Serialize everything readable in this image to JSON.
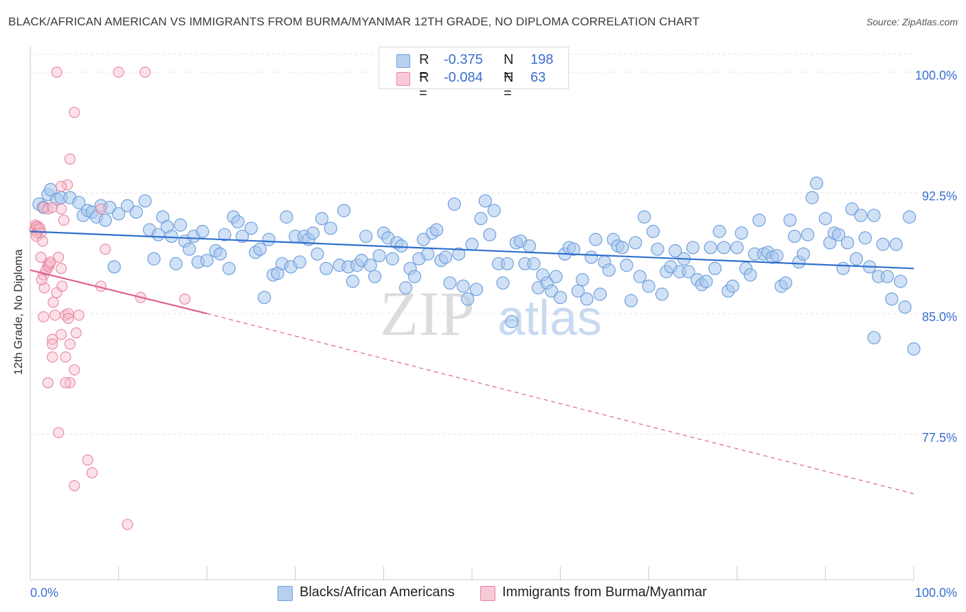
{
  "title": "BLACK/AFRICAN AMERICAN VS IMMIGRANTS FROM BURMA/MYANMAR 12TH GRADE, NO DIPLOMA CORRELATION CHART",
  "source": "Source: ZipAtlas.com",
  "watermark": {
    "zip": "ZIP",
    "atlas": "atlas"
  },
  "legend": {
    "rows": [
      {
        "r_label": "R =",
        "r_value": "-0.375",
        "n_label": "N =",
        "n_value": "198"
      },
      {
        "r_label": "R =",
        "r_value": "-0.084",
        "n_label": "N =",
        "n_value": "63"
      }
    ]
  },
  "bottom_legend": [
    "Blacks/African Americans",
    "Immigrants from Burma/Myanmar"
  ],
  "colors": {
    "blue_fill": "#a9c8ee",
    "blue_stroke": "#6f9fdc",
    "blue_line": "#2e6fcc",
    "pink_fill": "#f6bccd",
    "pink_stroke": "#e9839f",
    "pink_line": "#e0608a",
    "grid": "#e4e4e4",
    "axis_text": "#3b6fd1"
  },
  "chart_data": {
    "type": "scatter",
    "title": "BLACK/AFRICAN AMERICAN VS IMMIGRANTS FROM BURMA/MYANMAR 12TH GRADE, NO DIPLOMA CORRELATION CHART",
    "xlabel": "",
    "ylabel": "12th Grade, No Diploma",
    "xlim": [
      0,
      100
    ],
    "ylim": [
      68.5,
      101.5
    ],
    "x_tick_labels": [
      "0.0%",
      "100.0%"
    ],
    "y_ticks": [
      77.5,
      85.0,
      92.5,
      100.0
    ],
    "y_tick_labels": [
      "77.5%",
      "85.0%",
      "92.5%",
      "100.0%"
    ],
    "grid": true,
    "series": [
      {
        "name": "Blacks/African Americans",
        "trend": {
          "x": [
            0,
            100
          ],
          "y": [
            90.1,
            87.8
          ]
        },
        "points": [
          [
            1.0,
            91.8
          ],
          [
            1.5,
            91.6
          ],
          [
            2.0,
            92.4
          ],
          [
            2.3,
            92.7
          ],
          [
            3.0,
            92.1
          ],
          [
            3.5,
            92.2
          ],
          [
            4.5,
            92.2
          ],
          [
            5.5,
            91.9
          ],
          [
            6.0,
            91.1
          ],
          [
            6.5,
            91.4
          ],
          [
            7.0,
            91.3
          ],
          [
            8.0,
            91.7
          ],
          [
            7.5,
            91.0
          ],
          [
            8.5,
            90.8
          ],
          [
            9.0,
            91.6
          ],
          [
            10.0,
            91.2
          ],
          [
            11.0,
            91.7
          ],
          [
            12.0,
            91.3
          ],
          [
            13.0,
            92.0
          ],
          [
            9.5,
            87.9
          ],
          [
            13.5,
            90.2
          ],
          [
            14.5,
            89.9
          ],
          [
            14.0,
            88.4
          ],
          [
            15.0,
            91.0
          ],
          [
            15.5,
            90.4
          ],
          [
            16.0,
            89.8
          ],
          [
            16.5,
            88.1
          ],
          [
            17.0,
            90.5
          ],
          [
            17.5,
            89.5
          ],
          [
            18.0,
            89.0
          ],
          [
            18.5,
            89.8
          ],
          [
            19.0,
            88.2
          ],
          [
            19.5,
            90.1
          ],
          [
            20.0,
            88.3
          ],
          [
            21.0,
            88.9
          ],
          [
            21.5,
            88.7
          ],
          [
            22.0,
            89.9
          ],
          [
            22.5,
            87.8
          ],
          [
            23.0,
            91.0
          ],
          [
            23.5,
            90.7
          ],
          [
            24.0,
            89.8
          ],
          [
            25.0,
            90.3
          ],
          [
            25.5,
            88.8
          ],
          [
            26.0,
            89.0
          ],
          [
            26.5,
            86.0
          ],
          [
            27.0,
            89.6
          ],
          [
            27.5,
            87.4
          ],
          [
            28.0,
            87.5
          ],
          [
            28.5,
            88.1
          ],
          [
            29.0,
            91.0
          ],
          [
            29.5,
            87.9
          ],
          [
            30.0,
            89.8
          ],
          [
            30.5,
            88.2
          ],
          [
            31.0,
            89.8
          ],
          [
            31.5,
            89.6
          ],
          [
            32.0,
            90.0
          ],
          [
            32.5,
            88.7
          ],
          [
            33.0,
            90.9
          ],
          [
            33.5,
            87.8
          ],
          [
            34.0,
            90.3
          ],
          [
            35.0,
            88.0
          ],
          [
            35.5,
            91.4
          ],
          [
            36.0,
            87.9
          ],
          [
            36.5,
            87.0
          ],
          [
            37.0,
            88.0
          ],
          [
            37.5,
            88.3
          ],
          [
            38.0,
            89.8
          ],
          [
            38.5,
            88.0
          ],
          [
            39.0,
            87.3
          ],
          [
            39.5,
            88.6
          ],
          [
            40.0,
            90.0
          ],
          [
            40.5,
            89.7
          ],
          [
            41.0,
            88.4
          ],
          [
            41.5,
            89.4
          ],
          [
            42.0,
            89.2
          ],
          [
            42.5,
            86.6
          ],
          [
            43.0,
            87.8
          ],
          [
            43.5,
            87.3
          ],
          [
            44.0,
            88.4
          ],
          [
            44.5,
            89.6
          ],
          [
            45.0,
            88.7
          ],
          [
            45.5,
            90.0
          ],
          [
            46.0,
            90.2
          ],
          [
            46.5,
            88.3
          ],
          [
            47.0,
            88.5
          ],
          [
            47.5,
            86.9
          ],
          [
            48.0,
            91.8
          ],
          [
            48.5,
            88.7
          ],
          [
            49.0,
            86.7
          ],
          [
            49.5,
            85.9
          ],
          [
            50.0,
            89.3
          ],
          [
            50.5,
            86.5
          ],
          [
            51.0,
            90.9
          ],
          [
            51.5,
            92.0
          ],
          [
            52.0,
            89.9
          ],
          [
            52.5,
            91.4
          ],
          [
            53.0,
            88.1
          ],
          [
            53.5,
            86.9
          ],
          [
            54.0,
            88.1
          ],
          [
            54.5,
            84.5
          ],
          [
            55.0,
            89.4
          ],
          [
            55.5,
            89.5
          ],
          [
            56.0,
            88.1
          ],
          [
            56.5,
            89.2
          ],
          [
            57.0,
            88.1
          ],
          [
            57.5,
            86.6
          ],
          [
            58.0,
            87.4
          ],
          [
            58.5,
            86.9
          ],
          [
            59.0,
            86.4
          ],
          [
            59.5,
            87.3
          ],
          [
            60.0,
            86.0
          ],
          [
            60.5,
            88.7
          ],
          [
            61.0,
            89.1
          ],
          [
            61.5,
            89.0
          ],
          [
            62.0,
            86.4
          ],
          [
            62.5,
            87.1
          ],
          [
            63.0,
            85.9
          ],
          [
            63.5,
            88.5
          ],
          [
            64.0,
            89.6
          ],
          [
            64.5,
            86.2
          ],
          [
            65.0,
            88.2
          ],
          [
            65.5,
            87.7
          ],
          [
            66.0,
            89.6
          ],
          [
            66.5,
            89.2
          ],
          [
            67.0,
            89.1
          ],
          [
            67.5,
            88.0
          ],
          [
            68.0,
            85.8
          ],
          [
            68.5,
            89.4
          ],
          [
            69.0,
            87.3
          ],
          [
            69.5,
            91.0
          ],
          [
            70.0,
            86.7
          ],
          [
            70.5,
            90.1
          ],
          [
            71.0,
            89.0
          ],
          [
            71.5,
            86.2
          ],
          [
            72.0,
            87.6
          ],
          [
            72.5,
            87.9
          ],
          [
            73.0,
            88.9
          ],
          [
            73.5,
            87.6
          ],
          [
            74.0,
            88.4
          ],
          [
            74.5,
            87.6
          ],
          [
            75.0,
            89.1
          ],
          [
            75.5,
            87.1
          ],
          [
            76.0,
            86.8
          ],
          [
            76.5,
            87.0
          ],
          [
            77.0,
            89.1
          ],
          [
            77.5,
            87.8
          ],
          [
            78.0,
            90.1
          ],
          [
            78.5,
            89.1
          ],
          [
            79.0,
            86.4
          ],
          [
            79.5,
            86.7
          ],
          [
            80.0,
            89.1
          ],
          [
            80.5,
            90.0
          ],
          [
            81.0,
            87.8
          ],
          [
            81.5,
            87.4
          ],
          [
            82.0,
            88.7
          ],
          [
            82.5,
            90.8
          ],
          [
            83.0,
            88.7
          ],
          [
            83.5,
            88.8
          ],
          [
            84.0,
            88.5
          ],
          [
            84.5,
            88.6
          ],
          [
            85.0,
            86.7
          ],
          [
            85.5,
            86.9
          ],
          [
            86.0,
            90.8
          ],
          [
            86.5,
            89.8
          ],
          [
            87.0,
            88.2
          ],
          [
            87.5,
            88.7
          ],
          [
            88.0,
            89.9
          ],
          [
            88.5,
            92.2
          ],
          [
            89.0,
            93.1
          ],
          [
            90.0,
            90.9
          ],
          [
            90.5,
            89.4
          ],
          [
            91.0,
            90.0
          ],
          [
            91.5,
            89.9
          ],
          [
            92.0,
            87.8
          ],
          [
            92.5,
            89.4
          ],
          [
            93.0,
            91.5
          ],
          [
            93.5,
            88.4
          ],
          [
            94.0,
            91.1
          ],
          [
            94.5,
            89.7
          ],
          [
            95.0,
            87.9
          ],
          [
            95.5,
            91.1
          ],
          [
            96.0,
            87.3
          ],
          [
            96.5,
            89.3
          ],
          [
            97.0,
            87.3
          ],
          [
            97.5,
            85.9
          ],
          [
            98.0,
            89.3
          ],
          [
            98.5,
            87.0
          ],
          [
            99.0,
            85.4
          ],
          [
            99.5,
            91.0
          ],
          [
            100.0,
            82.8
          ],
          [
            95.5,
            83.5
          ]
        ]
      },
      {
        "name": "Immigrants from Burma/Myanmar",
        "trend_solid": {
          "x": [
            0,
            20
          ],
          "y": [
            87.7,
            85.0
          ]
        },
        "trend_dashed": {
          "x": [
            20,
            100
          ],
          "y": [
            85.0,
            73.8
          ]
        },
        "points": [
          [
            0.5,
            90.2
          ],
          [
            0.6,
            90.5
          ],
          [
            0.7,
            90.4
          ],
          [
            0.8,
            90.0
          ],
          [
            0.9,
            90.4
          ],
          [
            1.0,
            90.2
          ],
          [
            1.1,
            90.3
          ],
          [
            1.2,
            90.0
          ],
          [
            0.7,
            89.8
          ],
          [
            1.5,
            91.6
          ],
          [
            2.0,
            91.5
          ],
          [
            2.5,
            91.6
          ],
          [
            3.5,
            91.5
          ],
          [
            3.8,
            90.8
          ],
          [
            1.2,
            88.5
          ],
          [
            1.5,
            87.4
          ],
          [
            1.6,
            86.6
          ],
          [
            1.8,
            87.7
          ],
          [
            2.0,
            88.0
          ],
          [
            2.1,
            87.9
          ],
          [
            2.2,
            88.1
          ],
          [
            2.3,
            88.2
          ],
          [
            1.4,
            89.5
          ],
          [
            1.3,
            87.1
          ],
          [
            2.6,
            85.7
          ],
          [
            2.8,
            84.9
          ],
          [
            3.0,
            86.3
          ],
          [
            3.2,
            88.5
          ],
          [
            3.5,
            87.8
          ],
          [
            3.6,
            86.7
          ],
          [
            4.0,
            84.9
          ],
          [
            2.5,
            83.4
          ],
          [
            2.5,
            83.1
          ],
          [
            1.5,
            84.8
          ],
          [
            2.5,
            82.3
          ],
          [
            3.5,
            83.7
          ],
          [
            4.3,
            85.0
          ],
          [
            4.3,
            84.7
          ],
          [
            4.5,
            83.1
          ],
          [
            4.0,
            82.3
          ],
          [
            5.2,
            83.8
          ],
          [
            5.5,
            84.9
          ],
          [
            5.0,
            81.5
          ],
          [
            2.0,
            80.7
          ],
          [
            4.5,
            80.7
          ],
          [
            4.0,
            80.7
          ],
          [
            3.2,
            77.6
          ],
          [
            6.5,
            75.9
          ],
          [
            7.0,
            75.1
          ],
          [
            5.0,
            74.3
          ],
          [
            11.0,
            71.9
          ],
          [
            3.0,
            100.0
          ],
          [
            10.0,
            100.0
          ],
          [
            13.0,
            100.0
          ],
          [
            5.0,
            97.5
          ],
          [
            4.5,
            94.6
          ],
          [
            4.2,
            93.0
          ],
          [
            3.5,
            92.9
          ],
          [
            8.0,
            91.5
          ],
          [
            8.5,
            89.0
          ],
          [
            8.0,
            86.7
          ],
          [
            12.5,
            86.0
          ],
          [
            17.5,
            85.9
          ]
        ]
      }
    ]
  }
}
